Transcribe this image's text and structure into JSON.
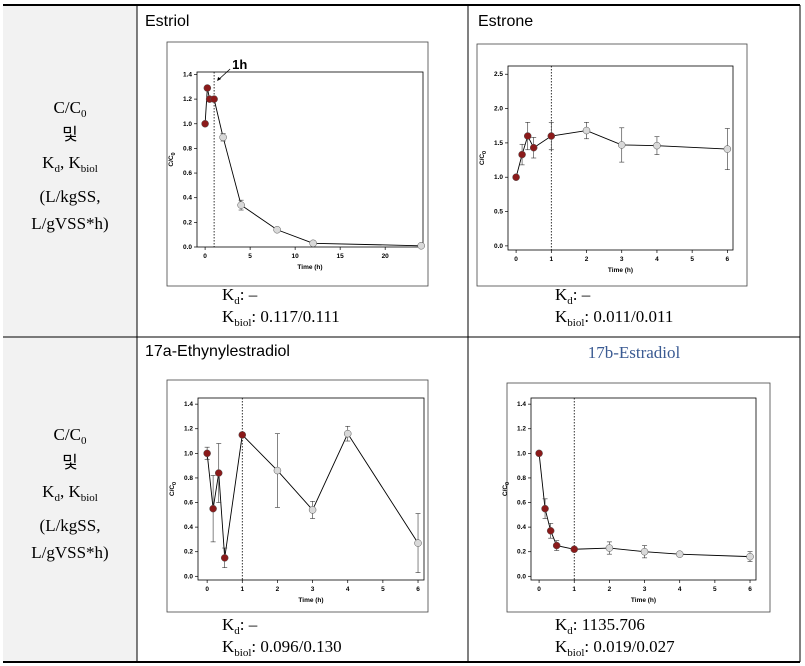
{
  "table": {
    "rows": [
      {
        "label": [
          [
            {
              "text": "C/C"
            },
            {
              "sub": "0"
            }
          ],
          [
            {
              "text": "및"
            }
          ],
          [
            {
              "text": "K"
            },
            {
              "sub": "d"
            },
            {
              "text": ", K"
            },
            {
              "sub": "biol"
            }
          ],
          [
            {
              "text": "(L/kgSS,"
            }
          ],
          [
            {
              "text": "L/gVSS*h)"
            }
          ]
        ],
        "cells": [
          {
            "title": "Estriol",
            "kd": [
              {
                "text": "K"
              },
              {
                "sub": "d"
              },
              {
                "text": ":  –"
              }
            ],
            "kbiol": [
              {
                "text": "K"
              },
              {
                "sub": "biol"
              },
              {
                "text": ":  0.117/0.111"
              }
            ]
          },
          {
            "title": "Estrone",
            "kd": [
              {
                "text": "K"
              },
              {
                "sub": "d"
              },
              {
                "text": ":  –"
              }
            ],
            "kbiol": [
              {
                "text": "K"
              },
              {
                "sub": "biol"
              },
              {
                "text": ":  0.011/0.011"
              }
            ]
          }
        ]
      },
      {
        "label": [
          [
            {
              "text": "C/C"
            },
            {
              "sub": "0"
            }
          ],
          [
            {
              "text": "및"
            }
          ],
          [
            {
              "text": "K"
            },
            {
              "sub": "d"
            },
            {
              "text": ", K"
            },
            {
              "sub": "biol"
            }
          ],
          [
            {
              "text": "(L/kgSS,"
            }
          ],
          [
            {
              "text": "L/gVSS*h)"
            }
          ]
        ],
        "cells": [
          {
            "title": "17a-Ethynylestradiol",
            "kd": [
              {
                "text": "K"
              },
              {
                "sub": "d"
              },
              {
                "text": ":  –"
              }
            ],
            "kbiol": [
              {
                "text": "K"
              },
              {
                "sub": "biol"
              },
              {
                "text": ":  0.096/0.130"
              }
            ]
          },
          {
            "title": "17b-Estradiol",
            "kd": [
              {
                "text": "K"
              },
              {
                "sub": "d"
              },
              {
                "text": ":  1135.706"
              }
            ],
            "kbiol": [
              {
                "text": "K"
              },
              {
                "sub": "biol"
              },
              {
                "text": ":  0.019/0.027"
              }
            ]
          }
        ]
      }
    ]
  },
  "chart_data": [
    {
      "type": "line",
      "xlabel": "Time (h)",
      "ylabel": "C/C",
      "ylabel_sub": "0",
      "annotation": "1h",
      "vline": 1,
      "x": [
        0,
        0.25,
        0.5,
        1,
        2,
        4,
        8,
        12,
        24
      ],
      "values": [
        1.0,
        1.29,
        1.2,
        1.2,
        0.89,
        0.34,
        0.14,
        0.03,
        0.01
      ],
      "errors": [
        0.02,
        0.02,
        0.02,
        0.02,
        0.03,
        0.04,
        0.02,
        0.02,
        0.01
      ],
      "colors": [
        "#8b1a1a",
        "#8b1a1a",
        "#8b1a1a",
        "#8b1a1a",
        "#d9d9d9",
        "#d9d9d9",
        "#d9d9d9",
        "#d9d9d9",
        "#d9d9d9"
      ],
      "xlim": [
        -0.9,
        24.2
      ],
      "xticks": [
        0,
        5,
        10,
        15,
        20
      ],
      "ylim": [
        0,
        1.42
      ],
      "yticks": [
        {
          "value": 0,
          "label": "0.0"
        },
        0.2,
        0.4,
        0.6,
        0.8,
        {
          "value": 1,
          "label": "1.0"
        },
        1.2,
        1.4
      ]
    },
    {
      "type": "line",
      "xlabel": "Time (h)",
      "ylabel": "C/C",
      "ylabel_sub": "0",
      "vline": 1,
      "x": [
        0,
        0.17,
        0.33,
        0.5,
        1,
        2,
        3,
        4,
        6
      ],
      "values": [
        1.0,
        1.33,
        1.6,
        1.43,
        1.6,
        1.68,
        1.47,
        1.46,
        1.41
      ],
      "errors": [
        0.03,
        0.15,
        0.2,
        0.15,
        0.2,
        0.12,
        0.25,
        0.13,
        0.3
      ],
      "colors": [
        "#8b1a1a",
        "#8b1a1a",
        "#8b1a1a",
        "#8b1a1a",
        "#8b1a1a",
        "#d9d9d9",
        "#d9d9d9",
        "#d9d9d9",
        "#d9d9d9"
      ],
      "xlim": [
        -0.23,
        6.16
      ],
      "xticks": [
        0,
        1,
        2,
        3,
        4,
        5,
        6
      ],
      "ylim": [
        -0.06,
        2.62
      ],
      "yticks": [
        {
          "value": 0,
          "label": "0.0"
        },
        0.5,
        {
          "value": 1,
          "label": "1.0"
        },
        1.5,
        {
          "value": 2,
          "label": "2.0"
        },
        2.5
      ]
    },
    {
      "type": "line",
      "xlabel": "Time (h)",
      "ylabel": "C/C",
      "ylabel_sub": "0",
      "vline": 1,
      "x": [
        0,
        0.17,
        0.33,
        0.5,
        1,
        2,
        3,
        4,
        6
      ],
      "values": [
        1.0,
        0.55,
        0.84,
        0.15,
        1.15,
        0.86,
        0.54,
        1.16,
        0.27
      ],
      "errors": [
        0.05,
        0.27,
        0.24,
        0.08,
        0.02,
        0.3,
        0.07,
        0.06,
        0.24
      ],
      "colors": [
        "#8b1a1a",
        "#8b1a1a",
        "#8b1a1a",
        "#8b1a1a",
        "#8b1a1a",
        "#d9d9d9",
        "#d9d9d9",
        "#d9d9d9",
        "#d9d9d9"
      ],
      "xlim": [
        -0.26,
        6.17
      ],
      "xticks": [
        0,
        1,
        2,
        3,
        4,
        5,
        6
      ],
      "ylim": [
        -0.03,
        1.45
      ],
      "yticks": [
        {
          "value": 0,
          "label": "0.0"
        },
        0.2,
        0.4,
        0.6,
        0.8,
        {
          "value": 1,
          "label": "1.0"
        },
        1.2,
        1.4
      ]
    },
    {
      "type": "line",
      "xlabel": "Time (h)",
      "ylabel": "C/C",
      "ylabel_sub": "0",
      "vline": 1,
      "x": [
        0,
        0.17,
        0.33,
        0.5,
        1,
        2,
        3,
        4,
        6
      ],
      "values": [
        1.0,
        0.55,
        0.37,
        0.25,
        0.22,
        0.23,
        0.2,
        0.18,
        0.16
      ],
      "errors": [
        0.02,
        0.08,
        0.06,
        0.04,
        0.02,
        0.05,
        0.05,
        0.02,
        0.04
      ],
      "colors": [
        "#8b1a1a",
        "#8b1a1a",
        "#8b1a1a",
        "#8b1a1a",
        "#8b1a1a",
        "#d9d9d9",
        "#d9d9d9",
        "#d9d9d9",
        "#d9d9d9"
      ],
      "xlim": [
        -0.23,
        6.17
      ],
      "xticks": [
        0,
        1,
        2,
        3,
        4,
        5,
        6
      ],
      "ylim": [
        -0.03,
        1.45
      ],
      "yticks": [
        {
          "value": 0,
          "label": "0.0"
        },
        0.2,
        0.4,
        0.6,
        0.8,
        {
          "value": 1,
          "label": "1.0"
        },
        1.2,
        1.4
      ]
    }
  ]
}
